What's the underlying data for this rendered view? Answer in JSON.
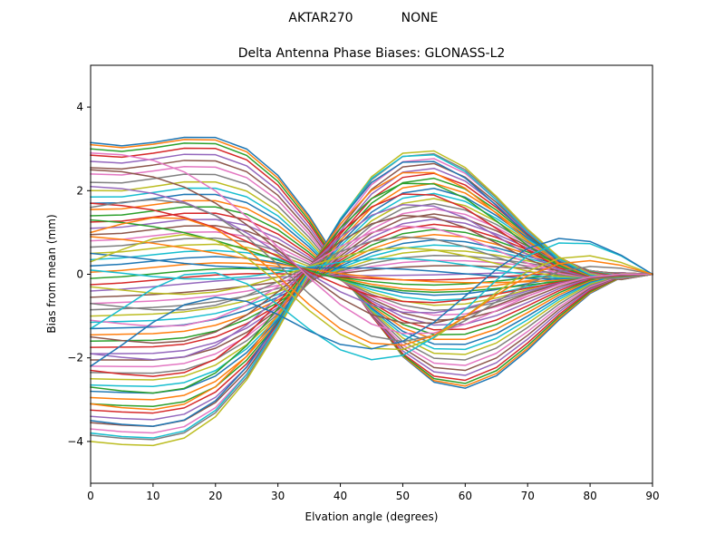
{
  "header": {
    "antenna": "AKTAR270",
    "radome": "NONE"
  },
  "chart_data": {
    "type": "line",
    "title": "Delta Antenna Phase Biases: GLONASS-L2",
    "xlabel": "Elvation angle (degrees)",
    "ylabel": "Bias from mean (mm)",
    "xlim": [
      0,
      90
    ],
    "ylim": [
      -5,
      5
    ],
    "xticks": [
      0,
      10,
      20,
      30,
      40,
      50,
      60,
      70,
      80,
      90
    ],
    "yticks": [
      -4,
      -2,
      0,
      2,
      4
    ],
    "grid": false,
    "legend": "none",
    "x": [
      0,
      5,
      10,
      15,
      20,
      25,
      30,
      35,
      40,
      45,
      50,
      55,
      60,
      65,
      70,
      75,
      80,
      85,
      90
    ],
    "colors": [
      "#1f77b4",
      "#ff7f0e",
      "#2ca02c",
      "#d62728",
      "#9467bd",
      "#8c564b",
      "#e377c2",
      "#7f7f7f",
      "#bcbd22",
      "#17becf"
    ],
    "family": {
      "count": 72,
      "start_values": [
        3.15,
        3.1,
        3.0,
        2.85,
        2.7,
        2.55,
        2.4,
        2.2,
        2.0,
        1.85,
        1.7,
        1.55,
        1.4,
        1.25,
        1.1,
        0.95,
        0.8,
        0.65,
        0.5,
        0.35,
        0.2,
        0.05,
        -0.1,
        -0.25,
        -0.4,
        -0.55,
        -0.7,
        -0.85,
        -1.0,
        -1.15,
        -1.3,
        -1.45,
        -1.6,
        -1.75,
        -1.9,
        -2.05,
        -2.2,
        -2.35,
        -2.5,
        -2.65,
        -2.8,
        -2.95,
        -3.1,
        -3.25,
        -3.4,
        -3.55,
        -3.7,
        -3.85,
        -4.0,
        -3.8,
        -3.5,
        -3.1,
        -2.7,
        -2.3,
        -1.9,
        -1.5,
        -1.1,
        -0.7,
        -0.3,
        0.1,
        0.5,
        0.9,
        1.3,
        1.7,
        2.1,
        2.5,
        2.9,
        1.6,
        0.3,
        -1.3,
        -2.2,
        1.0
      ],
      "amplitudes": [
        2.35,
        2.3,
        2.25,
        2.2,
        2.1,
        2.0,
        1.9,
        1.8,
        1.7,
        1.6,
        1.5,
        1.4,
        1.3,
        1.2,
        1.1,
        1.0,
        0.9,
        0.8,
        0.7,
        0.6,
        0.5,
        0.4,
        0.3,
        0.2,
        0.1,
        -0.1,
        -0.2,
        -0.3,
        -0.4,
        -0.5,
        -0.6,
        -0.7,
        -0.8,
        -0.9,
        -1.0,
        -1.1,
        -1.2,
        -1.3,
        -1.4,
        -1.5,
        -1.6,
        -1.7,
        -1.8,
        -1.9,
        -2.0,
        -2.1,
        -2.2,
        -2.3,
        -2.35,
        -2.3,
        -2.2,
        -2.0,
        -1.8,
        -1.6,
        -1.4,
        -1.2,
        -1.0,
        -0.8,
        -0.6,
        -0.4,
        -0.2,
        0.0,
        0.2,
        0.4,
        0.6,
        0.8,
        1.0,
        1.4,
        1.8,
        2.2,
        2.0,
        1.6
      ],
      "phases": [
        0.0,
        0.15,
        0.3,
        0.45,
        0.6,
        0.75,
        0.9,
        1.05,
        1.2,
        1.35,
        1.5,
        1.65,
        1.8,
        1.95,
        2.1,
        2.25,
        2.4,
        2.55,
        2.7,
        2.85,
        3.0,
        3.15,
        3.3,
        3.45,
        3.6,
        3.75,
        3.9,
        4.05,
        4.2,
        4.35,
        4.5,
        4.65,
        4.8,
        4.95,
        5.1,
        5.25,
        5.4,
        5.55,
        5.7,
        5.85,
        6.0,
        6.15,
        6.3,
        6.45,
        6.6,
        6.75,
        6.9,
        7.05,
        7.2,
        7.35,
        7.5,
        7.65,
        7.8,
        7.95,
        8.1,
        8.25,
        8.4,
        8.55,
        8.7,
        8.85,
        9.0,
        9.15,
        9.3,
        9.45,
        9.6,
        9.75,
        9.9,
        10.05,
        10.2,
        10.35,
        10.5,
        10.65
      ]
    }
  }
}
